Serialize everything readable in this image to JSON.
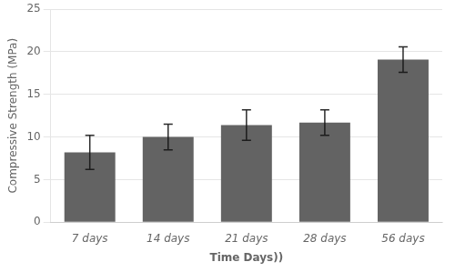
{
  "chart_data": {
    "type": "bar",
    "categories": [
      "7 days",
      "14 days",
      "21 days",
      "28 days",
      "56 days"
    ],
    "values": [
      8.2,
      10.0,
      11.4,
      11.7,
      19.1
    ],
    "errors": [
      2.0,
      1.5,
      1.8,
      1.5,
      1.5
    ],
    "color": "#636363",
    "xlabel": "Time Days))",
    "ylabel": "Compressive Strength (MPa)",
    "ylim": [
      0,
      25
    ],
    "yticks": [
      0,
      5,
      10,
      15,
      20,
      25
    ],
    "grid": true
  }
}
